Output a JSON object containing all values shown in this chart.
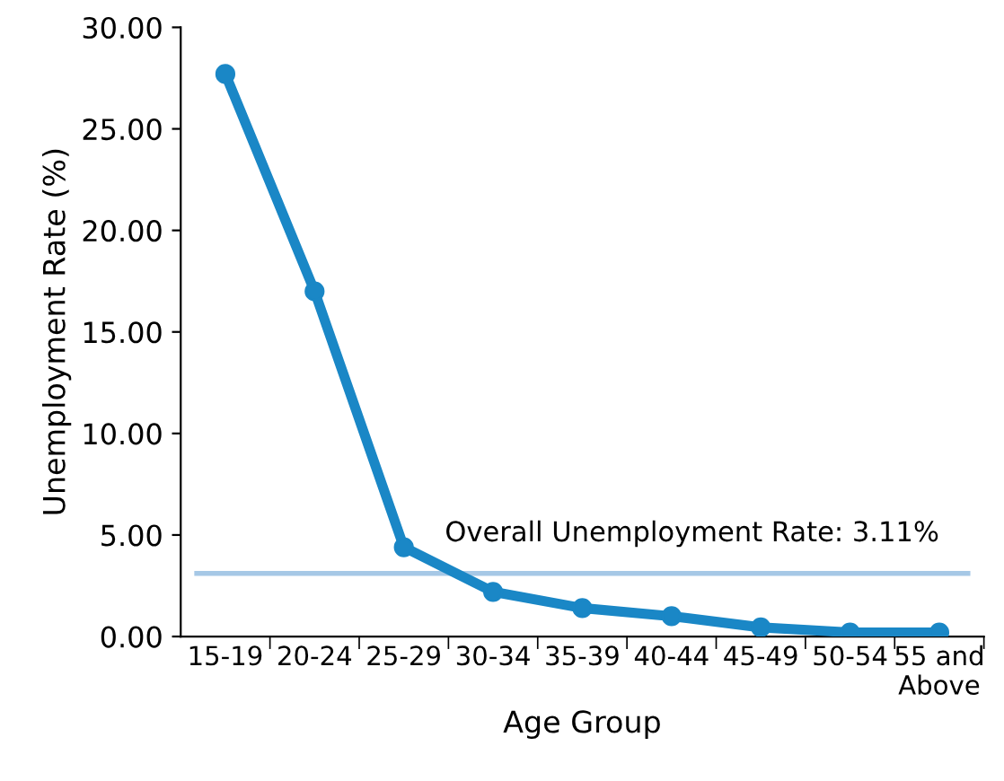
{
  "chart_data": {
    "type": "line",
    "xlabel": "Age Group",
    "ylabel": "Unemployment Rate (%)",
    "categories": [
      "15-19",
      "20-24",
      "25-29",
      "30-34",
      "35-39",
      "40-44",
      "45-49",
      "50-54",
      "55 and\nAbove"
    ],
    "series": [
      {
        "color": "#1a87c6",
        "values": [
          27.7,
          17.0,
          4.4,
          2.2,
          1.4,
          1.0,
          0.45,
          0.2,
          0.2
        ]
      }
    ],
    "ylim": [
      0,
      30
    ],
    "yticks": [
      {
        "value": 0,
        "label": "0.00"
      },
      {
        "value": 5,
        "label": "5.00"
      },
      {
        "value": 10,
        "label": "10.00"
      },
      {
        "value": 15,
        "label": "15.00"
      },
      {
        "value": 20,
        "label": "20.00"
      },
      {
        "value": 25,
        "label": "25.00"
      },
      {
        "value": 30,
        "label": "30.00"
      }
    ],
    "ref_lines": [
      {
        "axis": "y",
        "value": 3.11,
        "label": "Overall Unemployment Rate: 3.11%",
        "color": "#a6c8e6"
      }
    ],
    "marker": "circle",
    "line_style": "solid",
    "grid": false,
    "legend": false
  }
}
